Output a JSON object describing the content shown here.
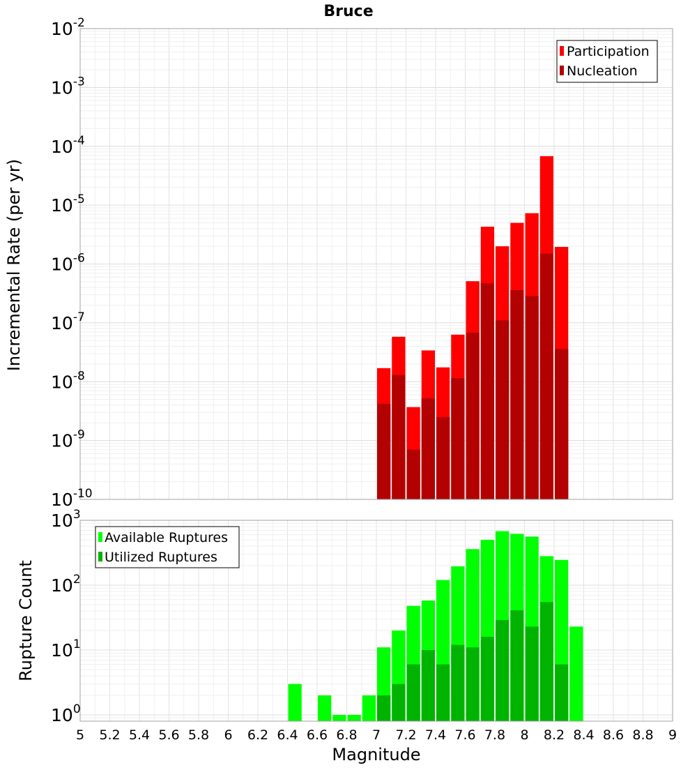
{
  "chart_data": [
    {
      "type": "bar",
      "title": "Bruce",
      "xlabel": "",
      "ylabel": "Incremental Rate (per yr)",
      "yscale": "log",
      "xlim": [
        5,
        9
      ],
      "ylim": [
        1e-10,
        0.01
      ],
      "grid": true,
      "legend_position": "top-right",
      "x": [
        7.05,
        7.15,
        7.25,
        7.35,
        7.45,
        7.55,
        7.65,
        7.75,
        7.85,
        7.95,
        8.05,
        8.15,
        8.25
      ],
      "y_tick_labels": [
        {
          "base": "10",
          "exp": "-10"
        },
        {
          "base": "10",
          "exp": "-9"
        },
        {
          "base": "10",
          "exp": "-8"
        },
        {
          "base": "10",
          "exp": "-7"
        },
        {
          "base": "10",
          "exp": "-6"
        },
        {
          "base": "10",
          "exp": "-5"
        },
        {
          "base": "10",
          "exp": "-4"
        },
        {
          "base": "10",
          "exp": "-3"
        },
        {
          "base": "10",
          "exp": "-2"
        }
      ],
      "series": [
        {
          "name": "Participation",
          "color": "#ff0000",
          "values": [
            1.7e-08,
            5.8e-08,
            3.7e-09,
            3.4e-08,
            1.75e-08,
            6.3e-08,
            5.1e-07,
            4.3e-06,
            2e-06,
            5e-06,
            7.3e-06,
            6.8e-05,
            1.95e-06
          ]
        },
        {
          "name": "Nucleation",
          "color": "#b30000",
          "values": [
            4.2e-09,
            1.3e-08,
            7e-10,
            5.2e-09,
            2.5e-09,
            1.15e-08,
            6.8e-08,
            4.7e-07,
            1.1e-07,
            3.6e-07,
            2.85e-07,
            1.5e-06,
            3.6e-08
          ]
        }
      ]
    },
    {
      "type": "bar",
      "title": "",
      "xlabel": "Magnitude",
      "ylabel": "Rupture Count",
      "yscale": "log",
      "xlim": [
        5,
        9
      ],
      "ylim": [
        0.8,
        1000
      ],
      "grid": true,
      "legend_position": "top-left",
      "x": [
        6.45,
        6.65,
        6.75,
        6.85,
        6.95,
        7.05,
        7.15,
        7.25,
        7.35,
        7.45,
        7.55,
        7.65,
        7.75,
        7.85,
        7.95,
        8.05,
        8.15,
        8.25,
        8.35
      ],
      "x_tick_labels": [
        "5",
        "5.2",
        "5.4",
        "5.6",
        "5.8",
        "6",
        "6.2",
        "6.4",
        "6.6",
        "6.8",
        "7",
        "7.2",
        "7.4",
        "7.6",
        "7.8",
        "8",
        "8.2",
        "8.4",
        "8.6",
        "8.8",
        "9"
      ],
      "y_tick_labels": [
        {
          "base": "10",
          "exp": "0"
        },
        {
          "base": "10",
          "exp": "1"
        },
        {
          "base": "10",
          "exp": "2"
        },
        {
          "base": "10",
          "exp": "3"
        }
      ],
      "series": [
        {
          "name": "Available Ruptures",
          "color": "#00ff00",
          "values": [
            3,
            2,
            1,
            1,
            2,
            11,
            20,
            48,
            58,
            120,
            195,
            360,
            500,
            680,
            620,
            560,
            280,
            245,
            23
          ]
        },
        {
          "name": "Utilized Ruptures",
          "color": "#00b300",
          "values": [
            null,
            null,
            null,
            null,
            null,
            2,
            3,
            6,
            10,
            6,
            12,
            11,
            16,
            29,
            41,
            23,
            55,
            6,
            null
          ]
        }
      ]
    }
  ]
}
